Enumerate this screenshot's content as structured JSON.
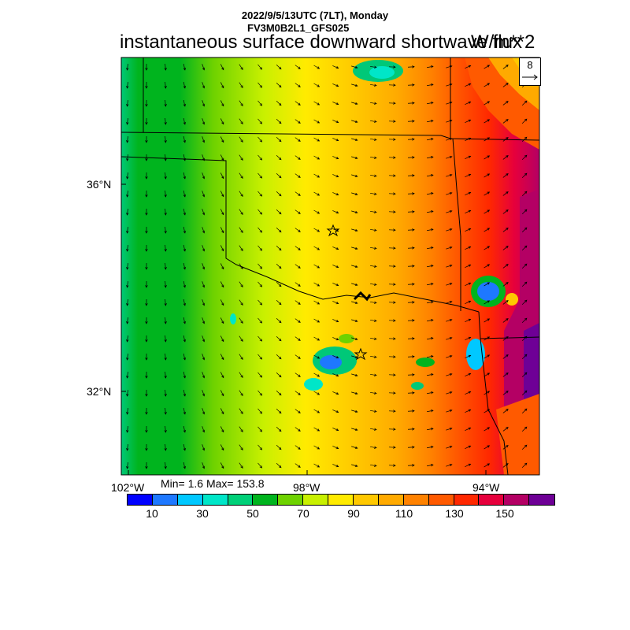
{
  "header": {
    "line1": "2022/9/5/13UTC (7LT), Monday",
    "line2": "FV3M0B2L1_GFS025",
    "title": "instantaneous surface downward shortwave flux",
    "units": "W/m**2"
  },
  "reference_vector": {
    "label": "8"
  },
  "axes": {
    "lat_labels": [
      "36°N",
      "32°N"
    ],
    "lon_labels": [
      "102°W",
      "98°W",
      "94°W"
    ]
  },
  "stats": {
    "text": "Min= 1.6 Max= 153.8"
  },
  "colorbar": {
    "colors": [
      "#0000ff",
      "#1e78ff",
      "#00c8ff",
      "#00e6c8",
      "#00d078",
      "#00b41e",
      "#6ed200",
      "#c8f000",
      "#ffeb00",
      "#ffc800",
      "#ffaa00",
      "#ff8200",
      "#ff5a00",
      "#ff2800",
      "#e6003c",
      "#b40064",
      "#6e0096"
    ],
    "labels": [
      "10",
      "30",
      "50",
      "70",
      "90",
      "110",
      "130",
      "150"
    ]
  },
  "markers": {
    "stars": [
      "star",
      "star"
    ]
  }
}
